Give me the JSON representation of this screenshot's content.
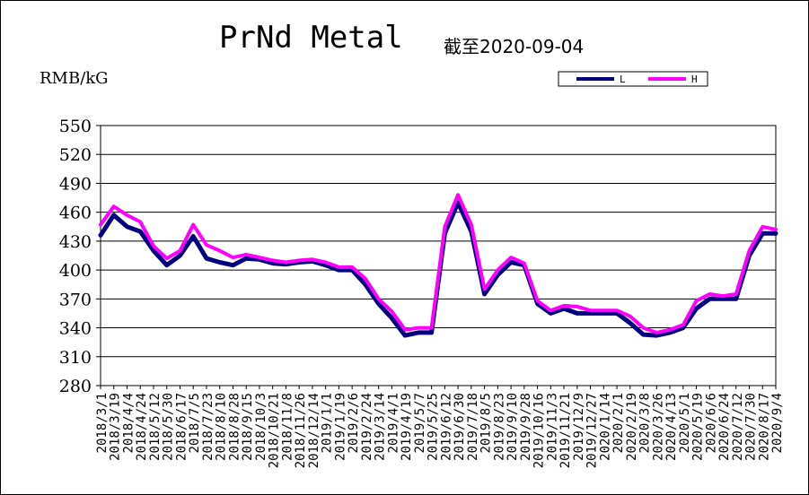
{
  "chart_data": {
    "type": "line",
    "title": "PrNd Metal",
    "subtitle": "截至2020-09-04",
    "ylabel": "RMB/kG",
    "xlabel": "",
    "ylim": [
      280,
      550
    ],
    "yticks": [
      280,
      310,
      340,
      370,
      400,
      430,
      460,
      490,
      520,
      550
    ],
    "legend_position": "top-right",
    "grid": "horizontal",
    "x_labels": [
      "2018/3/1",
      "2018/3/19",
      "2018/4/4",
      "2018/4/24",
      "2018/5/12",
      "2018/5/30",
      "2018/6/17",
      "2018/7/5",
      "2018/7/23",
      "2018/8/10",
      "2018/8/28",
      "2018/9/15",
      "2018/10/3",
      "2018/10/21",
      "2018/11/8",
      "2018/11/26",
      "2018/12/14",
      "2019/1/1",
      "2019/1/19",
      "2019/2/6",
      "2019/2/24",
      "2019/3/14",
      "2019/4/1",
      "2019/4/19",
      "2019/5/7",
      "2019/5/25",
      "2019/6/12",
      "2019/6/30",
      "2019/7/18",
      "2019/8/5",
      "2019/8/23",
      "2019/9/10",
      "2019/9/28",
      "2019/10/16",
      "2019/11/3",
      "2019/11/21",
      "2019/12/9",
      "2019/12/27",
      "2020/1/14",
      "2020/2/1",
      "2020/2/19",
      "2020/3/8",
      "2020/3/26",
      "2020/4/13",
      "2020/5/1",
      "2020/5/19",
      "2020/6/6",
      "2020/6/24",
      "2020/7/12",
      "2020/7/30",
      "2020/8/17",
      "2020/9/4"
    ],
    "series": [
      {
        "name": "L",
        "color": "#000080",
        "values": [
          436,
          457,
          445,
          440,
          420,
          405,
          415,
          435,
          412,
          408,
          405,
          412,
          411,
          407,
          406,
          408,
          409,
          405,
          400,
          400,
          385,
          365,
          350,
          332,
          335,
          335,
          438,
          470,
          440,
          375,
          395,
          408,
          405,
          365,
          355,
          360,
          355,
          355,
          355,
          355,
          345,
          333,
          332,
          335,
          340,
          360,
          370,
          370,
          370,
          415,
          438,
          438
        ]
      },
      {
        "name": "H",
        "color": "#FF00FF",
        "values": [
          447,
          466,
          457,
          450,
          425,
          412,
          420,
          447,
          426,
          420,
          413,
          416,
          413,
          410,
          408,
          410,
          411,
          408,
          403,
          403,
          391,
          370,
          357,
          338,
          340,
          340,
          445,
          478,
          447,
          380,
          400,
          413,
          407,
          368,
          358,
          363,
          362,
          358,
          358,
          358,
          352,
          340,
          335,
          338,
          343,
          368,
          375,
          373,
          375,
          420,
          445,
          442
        ]
      }
    ]
  }
}
